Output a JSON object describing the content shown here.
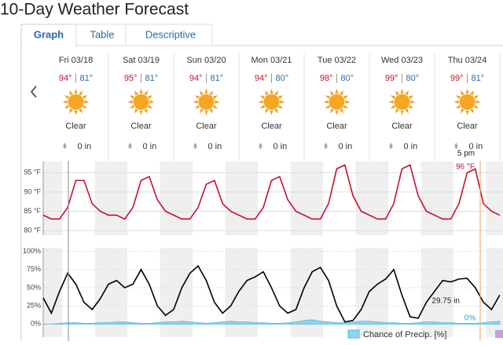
{
  "header": {
    "title": "10-Day Weather Forecast"
  },
  "tabs": [
    "Graph",
    "Table",
    "Descriptive"
  ],
  "days": [
    {
      "date": "Fri 03/18",
      "high": "94°",
      "low": "81°",
      "condition": "Clear",
      "precip": "0 in"
    },
    {
      "date": "Sat 03/19",
      "high": "95°",
      "low": "81°",
      "condition": "Clear",
      "precip": "0 in"
    },
    {
      "date": "Sun 03/20",
      "high": "94°",
      "low": "81°",
      "condition": "Clear",
      "precip": "0 in"
    },
    {
      "date": "Mon 03/21",
      "high": "94°",
      "low": "80°",
      "condition": "Clear",
      "precip": "0 in"
    },
    {
      "date": "Tue 03/22",
      "high": "98°",
      "low": "80°",
      "condition": "Clear",
      "precip": "0 in"
    },
    {
      "date": "Wed 03/23",
      "high": "99°",
      "low": "80°",
      "condition": "Clear",
      "precip": "0 in"
    },
    {
      "date": "Thu 03/24",
      "high": "99°",
      "low": "81°",
      "condition": "Clear",
      "precip": "0 in"
    }
  ],
  "temperature_chart": {
    "type": "line",
    "color": "#c8102e",
    "xlim": [
      0,
      169.2
    ],
    "ylim": [
      78.8,
      97.9
    ],
    "yticks": [
      {
        "value": 95,
        "label": "95 °F"
      },
      {
        "value": 90,
        "label": "90 °F"
      },
      {
        "value": 85,
        "label": "85 °F"
      },
      {
        "value": 80,
        "label": "80 °F"
      }
    ],
    "x": [
      0,
      3,
      6,
      9,
      12,
      15,
      18,
      21,
      24,
      27,
      30,
      33,
      36,
      39,
      42,
      45,
      48,
      51,
      54,
      57,
      60,
      63,
      66,
      69,
      72,
      75,
      78,
      81,
      84,
      87,
      90,
      93,
      96,
      99,
      102,
      105,
      108,
      111,
      114,
      117,
      120,
      123,
      126,
      129,
      132,
      135,
      138,
      141,
      144,
      147,
      150,
      153,
      156,
      159,
      162,
      165,
      168
    ],
    "values": [
      84,
      83,
      83,
      86,
      93,
      93,
      87,
      85,
      84,
      84,
      83,
      86,
      93,
      94,
      88,
      85,
      84,
      83,
      83,
      86,
      92,
      93,
      87,
      85,
      84,
      83,
      83,
      86,
      93,
      94,
      88,
      85,
      84,
      83,
      83,
      87,
      96,
      97,
      89,
      85,
      84,
      83,
      83,
      87,
      96,
      97,
      89,
      85,
      84,
      83,
      83,
      87,
      95,
      96,
      87,
      85,
      84
    ]
  },
  "humidity_chart": {
    "type": "line",
    "xlim": [
      0,
      169.2
    ],
    "ylim": [
      -18,
      105
    ],
    "yticks": [
      {
        "value": 100,
        "label": "100%"
      },
      {
        "value": 75,
        "label": "75%"
      },
      {
        "value": 50,
        "label": "50%"
      },
      {
        "value": 25,
        "label": "25%"
      },
      {
        "value": 0,
        "label": "0%"
      }
    ],
    "x": [
      0,
      3,
      6,
      9,
      12,
      15,
      18,
      21,
      24,
      27,
      30,
      33,
      36,
      39,
      42,
      45,
      48,
      51,
      54,
      57,
      60,
      63,
      66,
      69,
      72,
      75,
      78,
      81,
      84,
      87,
      90,
      93,
      96,
      99,
      102,
      105,
      108,
      111,
      114,
      117,
      120,
      123,
      126,
      129,
      132,
      135,
      138,
      141,
      144,
      147,
      150,
      153,
      156,
      159,
      162,
      165,
      168
    ],
    "series": [
      {
        "color": "#000000",
        "values": [
          36,
          15,
          45,
          70,
          55,
          30,
          20,
          35,
          55,
          60,
          50,
          55,
          75,
          55,
          25,
          12,
          20,
          50,
          70,
          80,
          60,
          30,
          15,
          25,
          45,
          60,
          65,
          72,
          50,
          25,
          15,
          20,
          50,
          72,
          78,
          60,
          25,
          3,
          5,
          20,
          45,
          55,
          62,
          75,
          40,
          10,
          8,
          30,
          45,
          60,
          58,
          62,
          63,
          50,
          30,
          20,
          40
        ]
      },
      {
        "name": "Chance of Precip. [%]",
        "color": "#8fd3ef",
        "values": [
          0,
          0,
          1,
          2,
          2,
          1,
          1,
          2,
          2,
          3,
          3,
          2,
          1,
          1,
          2,
          3,
          3,
          4,
          3,
          2,
          1,
          2,
          3,
          4,
          3,
          3,
          2,
          2,
          1,
          1,
          2,
          3,
          5,
          6,
          4,
          3,
          2,
          2,
          3,
          4,
          4,
          3,
          2,
          2,
          1,
          1,
          2,
          3,
          3,
          2,
          2,
          1,
          1,
          1,
          2,
          3,
          4
        ]
      }
    ],
    "annotations": [
      "29.75 in",
      "0%"
    ]
  },
  "tooltip": {
    "time": "5 pm",
    "temperature": "96 °F"
  }
}
